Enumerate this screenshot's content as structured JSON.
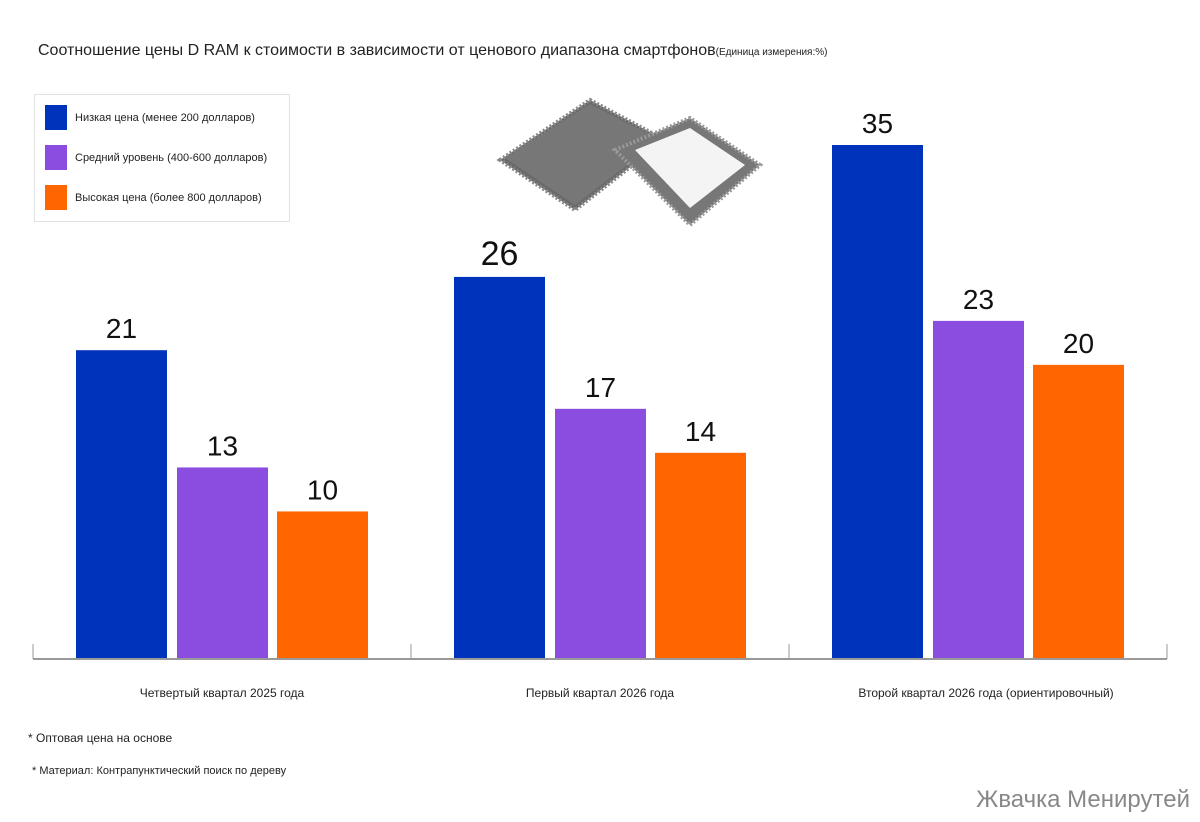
{
  "chart_data": {
    "type": "bar",
    "title": "Соотношение цены D RAM к стоимости в зависимости от ценового диапазона смартфонов",
    "unit_note": "(Единица измерения:%)",
    "categories": [
      "Четвертый квартал 2025 года",
      "Первый квартал 2026 года",
      "Второй квартал 2026 года (ориентировочный)"
    ],
    "series": [
      {
        "name": "Низкая цена (менее 200 долларов)",
        "color": "#0033bb",
        "values": [
          21,
          26,
          35
        ]
      },
      {
        "name": "Средний уровень (400-600 долларов)",
        "color": "#8a4ddf",
        "values": [
          13,
          17,
          23
        ]
      },
      {
        "name": "Высокая цена (более 800 долларов)",
        "color": "#ff6600",
        "values": [
          10,
          14,
          20
        ]
      }
    ],
    "ylim": [
      0,
      35
    ],
    "grid": false,
    "legend_position": "top-left",
    "data_labels": true
  },
  "notes": [
    "* Оптовая цена на основе",
    "* Материал: Контрапунктический поиск по дереву"
  ],
  "brand": "Жвачка Менирутей",
  "decoration": "chip-icon"
}
